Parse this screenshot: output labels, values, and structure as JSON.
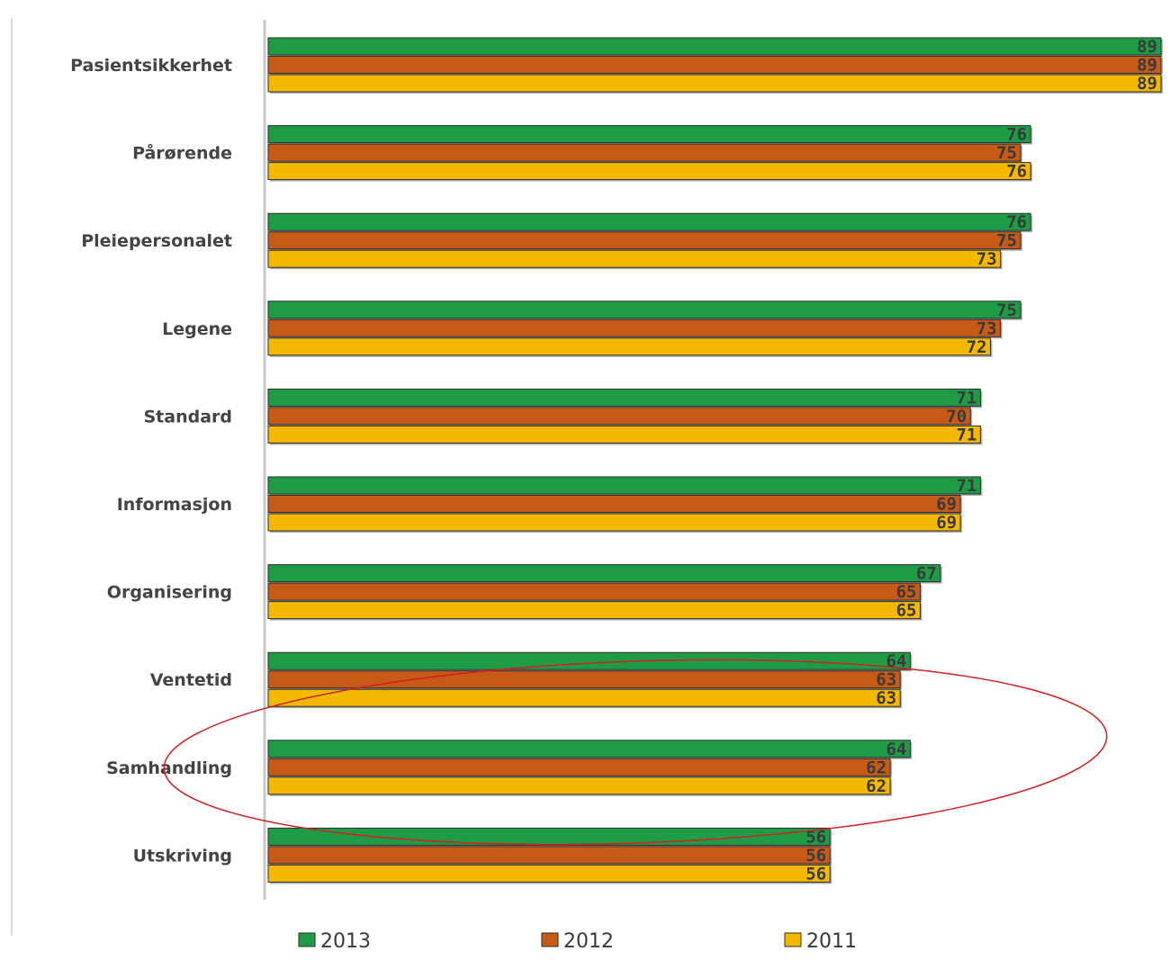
{
  "chart_data": {
    "type": "bar",
    "orientation": "horizontal",
    "categories": [
      "Pasientsikkerhet",
      "Pårørende",
      "Pleiepersonalet",
      "Legene",
      "Standard",
      "Informasjon",
      "Organisering",
      "Ventetid",
      "Samhandling",
      "Utskriving"
    ],
    "series": [
      {
        "name": "2013",
        "color": "#1e9b45",
        "values": [
          89,
          76,
          76,
          75,
          71,
          71,
          67,
          64,
          64,
          56
        ]
      },
      {
        "name": "2012",
        "color": "#c65a16",
        "values": [
          89,
          75,
          75,
          73,
          70,
          69,
          65,
          63,
          62,
          56
        ]
      },
      {
        "name": "2011",
        "color": "#f5b800",
        "values": [
          89,
          76,
          73,
          72,
          71,
          69,
          65,
          63,
          62,
          56
        ]
      }
    ],
    "xlim": [
      0,
      89
    ],
    "grid": false,
    "legend_placement": "bottom",
    "data_labels": true,
    "annotation": {
      "shape": "ellipse",
      "color": "#d21f1f",
      "encloses": [
        "Ventetid",
        "Samhandling"
      ]
    }
  }
}
